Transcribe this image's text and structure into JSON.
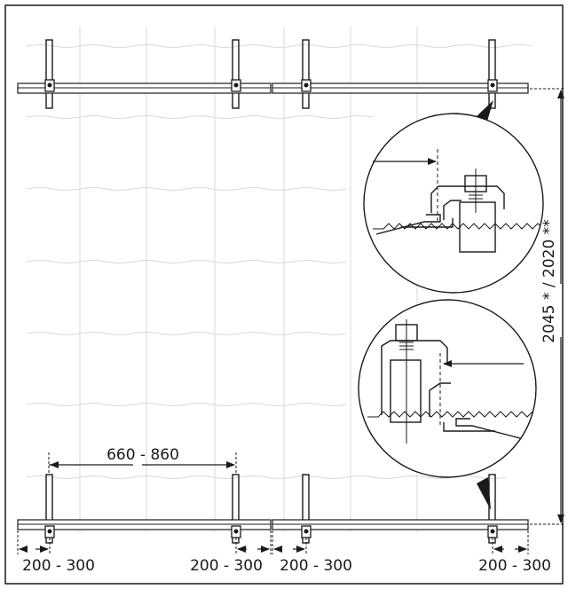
{
  "labels": {
    "spacing_top": "660 - 860",
    "edge_left_1": "200 - 300",
    "edge_mid_1": "200 - 300",
    "edge_mid_2": "200 - 300",
    "edge_right": "200 - 300",
    "height": "2045 * / 2020 **"
  }
}
